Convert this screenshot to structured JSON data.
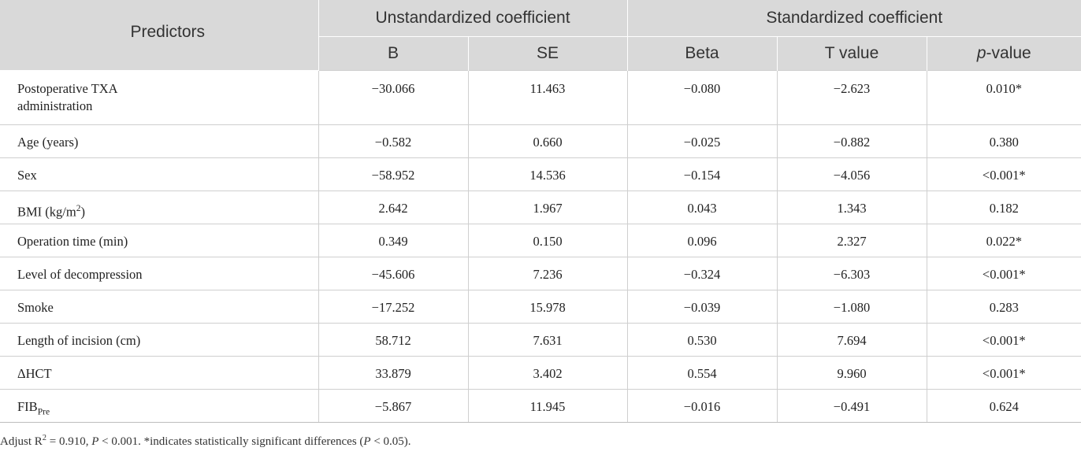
{
  "table": {
    "group_headers": {
      "unstandardized": "Unstandardized coefficient",
      "standardized": "Standardized coefficient"
    },
    "columns": {
      "predictors": "Predictors",
      "b": "B",
      "se": "SE",
      "beta": "Beta",
      "t": "T value",
      "p_italic": "p",
      "p_rest": "-value"
    },
    "rows": [
      {
        "predictor": "Postoperative TXA administration",
        "b": "−30.066",
        "se": "11.463",
        "beta": "−0.080",
        "t": "−2.623",
        "p": "0.010*"
      },
      {
        "predictor": "Age (years)",
        "b": "−0.582",
        "se": "0.660",
        "beta": "−0.025",
        "t": "−0.882",
        "p": "0.380"
      },
      {
        "predictor": "Sex",
        "b": "−58.952",
        "se": "14.536",
        "beta": "−0.154",
        "t": "−4.056",
        "p": "<0.001*"
      },
      {
        "predictor_main": "BMI (kg/m",
        "predictor_sup": "2",
        "predictor_end": ")",
        "b": "2.642",
        "se": "1.967",
        "beta": "0.043",
        "t": "1.343",
        "p": "0.182"
      },
      {
        "predictor": "Operation time (min)",
        "b": "0.349",
        "se": "0.150",
        "beta": "0.096",
        "t": "2.327",
        "p": "0.022*"
      },
      {
        "predictor": "Level of decompression",
        "b": "−45.606",
        "se": "7.236",
        "beta": "−0.324",
        "t": "−6.303",
        "p": "<0.001*"
      },
      {
        "predictor": "Smoke",
        "b": "−17.252",
        "se": "15.978",
        "beta": "−0.039",
        "t": "−1.080",
        "p": "0.283"
      },
      {
        "predictor": "Length of incision (cm)",
        "b": "58.712",
        "se": "7.631",
        "beta": "0.530",
        "t": "7.694",
        "p": "<0.001*"
      },
      {
        "predictor": "ΔHCT",
        "b": "33.879",
        "se": "3.402",
        "beta": "0.554",
        "t": "9.960",
        "p": "<0.001*"
      },
      {
        "predictor_main": "FIB",
        "predictor_sub": "Pre",
        "b": "−5.867",
        "se": "11.945",
        "beta": "−0.016",
        "t": "−0.491",
        "p": "0.624"
      }
    ]
  },
  "footnote": {
    "part1": "Adjust R",
    "sup": "2",
    "part2": " = 0.910, ",
    "p1": "P",
    "part3": " < 0.001. *indicates statistically significant differences (",
    "p2": "P",
    "part4": " < 0.05)."
  }
}
